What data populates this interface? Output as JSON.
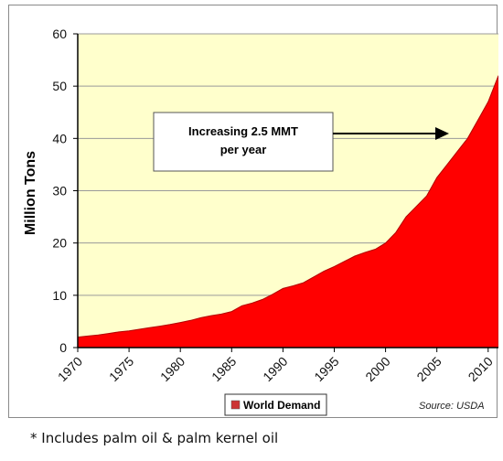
{
  "chart_data": {
    "type": "area",
    "title": "",
    "ylabel": "Million Tons",
    "xlabel": "",
    "ylim": [
      0,
      60
    ],
    "yticks": [
      "0",
      "10",
      "20",
      "30",
      "40",
      "50",
      "60"
    ],
    "xtick_labels": [
      "1970",
      "1975",
      "1980",
      "1985",
      "1990",
      "1995",
      "2000",
      "2005",
      "2010"
    ],
    "grid": true,
    "plot_background": "#FFFFCC",
    "series": [
      {
        "name": "World Demand",
        "color": "#FF0000",
        "x": [
          1970,
          1971,
          1972,
          1973,
          1974,
          1975,
          1976,
          1977,
          1978,
          1979,
          1980,
          1981,
          1982,
          1983,
          1984,
          1985,
          1986,
          1987,
          1988,
          1989,
          1990,
          1991,
          1992,
          1993,
          1994,
          1995,
          1996,
          1997,
          1998,
          1999,
          2000,
          2001,
          2002,
          2003,
          2004,
          2005,
          2006,
          2007,
          2008,
          2009,
          2010,
          2011
        ],
        "values": [
          2.0,
          2.2,
          2.4,
          2.7,
          3.0,
          3.2,
          3.5,
          3.8,
          4.1,
          4.4,
          4.8,
          5.2,
          5.7,
          6.1,
          6.4,
          6.9,
          8.0,
          8.5,
          9.2,
          10.2,
          11.3,
          11.8,
          12.4,
          13.5,
          14.6,
          15.5,
          16.5,
          17.5,
          18.2,
          18.8,
          20.0,
          22.0,
          25.0,
          27.0,
          29.0,
          32.5,
          35.0,
          37.5,
          40.0,
          43.5,
          47.0,
          52.0
        ]
      }
    ],
    "annotation": {
      "line1": "Increasing 2.5 MMT",
      "line2": "per year"
    },
    "legend": {
      "label": "World Demand",
      "color": "#CC3333",
      "position": "bottom-center"
    },
    "source": "Source: USDA"
  },
  "footnote": "* Includes palm oil & palm kernel oil"
}
